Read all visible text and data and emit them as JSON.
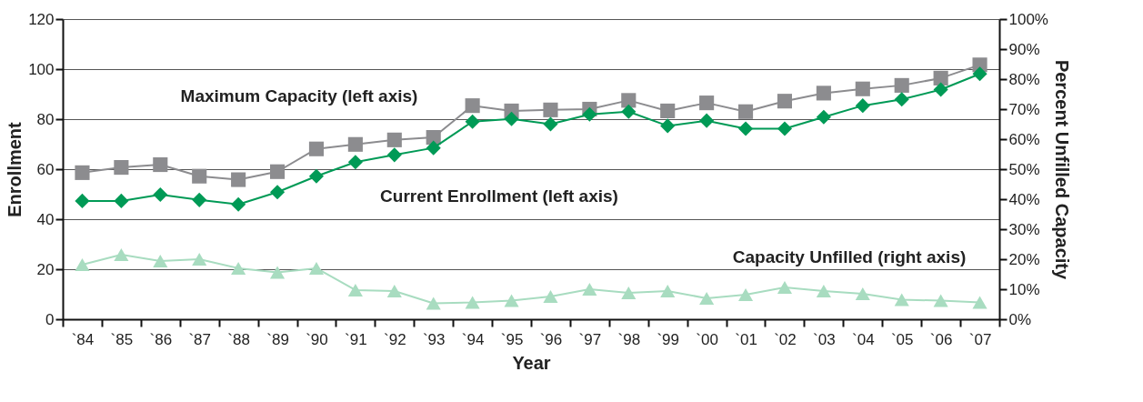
{
  "chart_data": {
    "type": "line",
    "xlabel": "Year",
    "ylabel": "Enrollment",
    "y2label": "Percent Unfilled Capacity",
    "categories": [
      "`84",
      "`85",
      "`86",
      "`87",
      "`88",
      "`89",
      "`90",
      "`91",
      "`92",
      "`93",
      "`94",
      "`95",
      "`96",
      "`97",
      "`98",
      "`99",
      "`00",
      "`01",
      "`02",
      "`03",
      "`04",
      "`05",
      "`06",
      "`07"
    ],
    "series": [
      {
        "name": "Maximum Capacity (left axis)",
        "color": "#8c8c8f",
        "marker": "square",
        "values": [
          58.6,
          60.7,
          61.8,
          57.2,
          55.8,
          59,
          68.1,
          69.9,
          71.7,
          72.7,
          85.4,
          83.3,
          83.7,
          84,
          87.5,
          83.3,
          86.5,
          83,
          87.2,
          90.4,
          92.1,
          93.5,
          96.4,
          101.7
        ]
      },
      {
        "name": "Current Enrollment (left axis)",
        "color": "#009a56",
        "marker": "diamond",
        "values": [
          47.3,
          47.3,
          49.8,
          47.7,
          45.9,
          50.8,
          57.2,
          62.8,
          65.7,
          68.5,
          79,
          80.1,
          78,
          81.9,
          83,
          77.3,
          79.4,
          76.2,
          76.2,
          80.8,
          85.4,
          87.9,
          91.8,
          98.1
        ]
      },
      {
        "name": "Capacity Unfilled (right axis)",
        "color": "#a8dcc0",
        "marker": "triangle",
        "axis": "y2",
        "values": [
          18.2,
          21.5,
          19.4,
          20,
          17,
          15.6,
          17,
          9.7,
          9.4,
          5.3,
          5.6,
          6.2,
          7.6,
          10,
          8.8,
          9.4,
          7,
          8.2,
          10.6,
          9.4,
          8.5,
          6.5,
          6.2,
          5.6
        ]
      }
    ],
    "ylim": [
      0,
      120
    ],
    "yticks": [
      0,
      20,
      40,
      60,
      80,
      100,
      120
    ],
    "y2lim": [
      0,
      100
    ],
    "y2ticks": [
      {
        "value": 0,
        "label": "0%"
      },
      {
        "value": 10,
        "label": "10%"
      },
      {
        "value": 20,
        "label": "20%"
      },
      {
        "value": 30,
        "label": "30%"
      },
      {
        "value": 40,
        "label": "40%"
      },
      {
        "value": 50,
        "label": "50%"
      },
      {
        "value": 60,
        "label": "60%"
      },
      {
        "value": 70,
        "label": "70%"
      },
      {
        "value": 80,
        "label": "80%"
      },
      {
        "value": 90,
        "label": "90%"
      },
      {
        "value": 100,
        "label": "100%"
      }
    ],
    "grid": "y",
    "line_style": "solid"
  }
}
